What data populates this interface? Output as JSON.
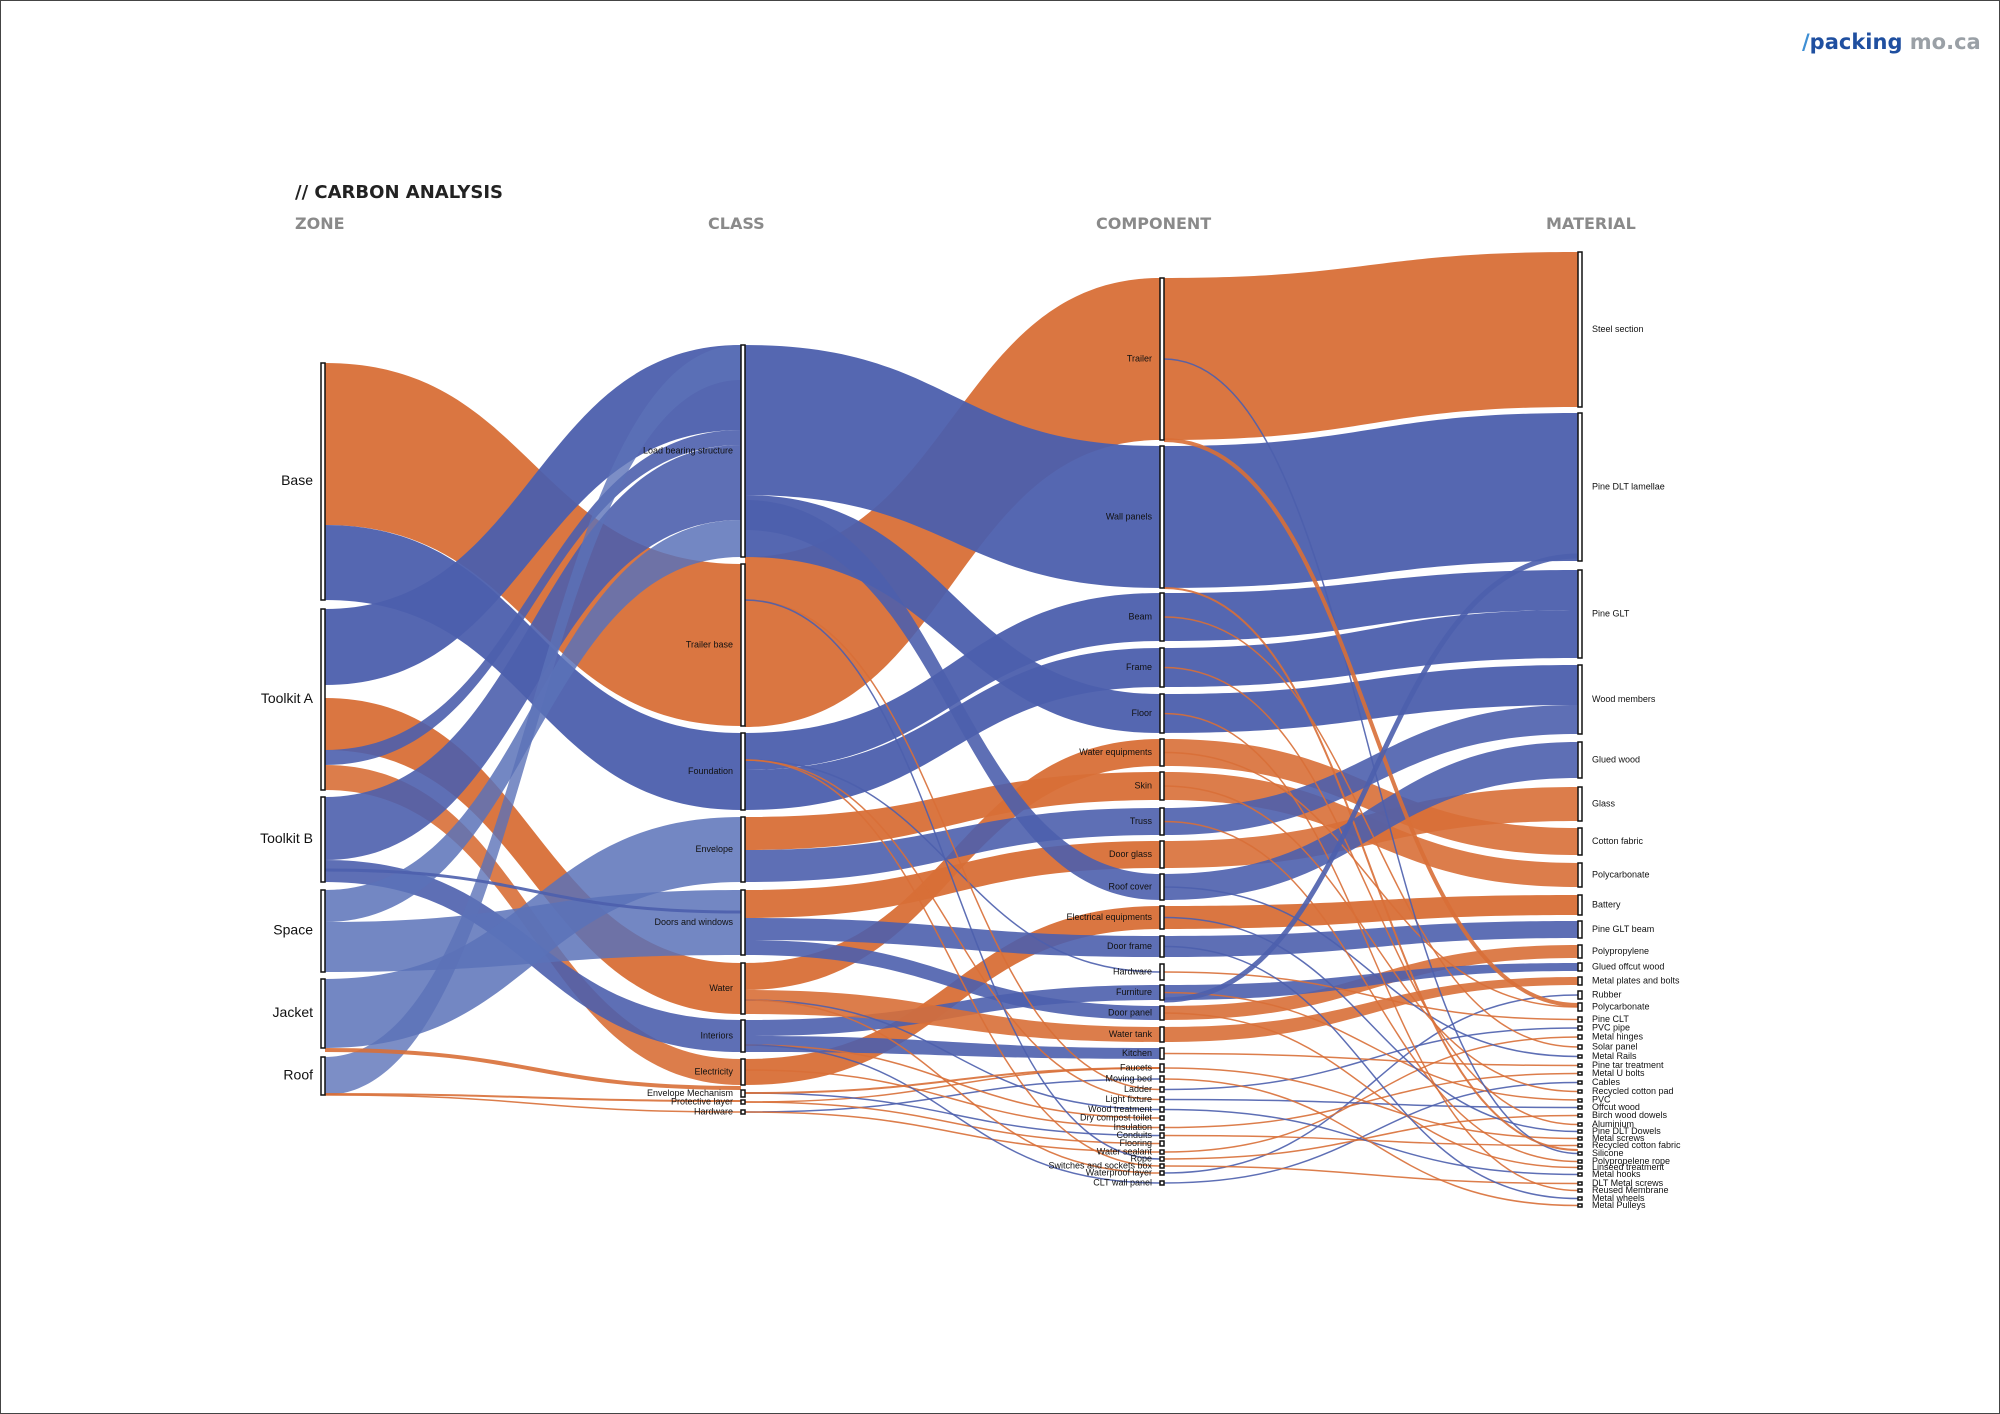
{
  "brand": {
    "slash": "/",
    "part1": "packing",
    "part2": "mo.ca"
  },
  "title": "// CARBON ANALYSIS",
  "columns": [
    "ZONE",
    "CLASS",
    "COMPONENT",
    "MATERIAL"
  ],
  "colors": {
    "concrete_like": "#d86f37",
    "wood_like": "#4c5fad",
    "secondary": "#5b72b8"
  },
  "chart_data": {
    "type": "sankey",
    "stages": [
      "ZONE",
      "CLASS",
      "COMPONENT",
      "MATERIAL"
    ],
    "zone": [
      "Base",
      "Toolkit A",
      "Toolkit B",
      "Space",
      "Jacket",
      "Roof"
    ],
    "class": [
      "Load bearing structure",
      "Trailer base",
      "Foundation",
      "Envelope",
      "Doors and windows",
      "Water",
      "Interiors",
      "Electricity",
      "Envelope Mechanism",
      "Protective layer",
      "Hardware"
    ],
    "component": [
      "Trailer",
      "Wall panels",
      "Beam",
      "Frame",
      "Floor",
      "Water equipments",
      "Skin",
      "Truss",
      "Door glass",
      "Roof cover",
      "Electrical equipments",
      "Door frame",
      "Hardware",
      "Furniture",
      "Door panel",
      "Water tank",
      "Kitchen",
      "Faucets",
      "Moving bed",
      "Ladder",
      "Light fixture",
      "Wood treatment",
      "Dry compost toilet",
      "Insulation",
      "Conduits",
      "Flooring",
      "Water sealant",
      "Rope",
      "Switches and sockets box",
      "Waterproof layer",
      "CLT wall panel"
    ],
    "material": [
      "Steel section",
      "Pine DLT lamellae",
      "Pine GLT",
      "Wood members",
      "Glued wood",
      "Glass",
      "Cotton fabric",
      "Polycarbonate",
      "Battery",
      "Pine GLT beam",
      "Polypropylene",
      "Glued offcut wood",
      "Metal plates and bolts",
      "Rubber",
      "Polycarbonate",
      "Pine CLT",
      "PVC pipe",
      "Metal hinges",
      "Solar panel",
      "Metal Rails",
      "Pine tar treatment",
      "Metal U bolts",
      "Cables",
      "Recycled cotton pad",
      "PVC",
      "Offcut wood",
      "Birch wood dowels",
      "Aluminium",
      "Pine DLT Dowels",
      "Metal screws",
      "Recycled cotton fabric",
      "Silicone",
      "Polypropelene rope",
      "Linseed treatment",
      "Metal hooks",
      "DLT Metal screws",
      "Reused Membrane",
      "Metal wheels",
      "Metal Pulleys"
    ]
  }
}
